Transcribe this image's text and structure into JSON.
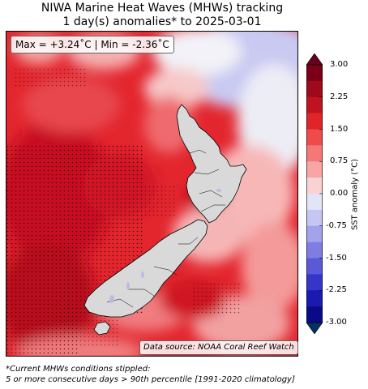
{
  "title": {
    "line1": "NIWA Marine Heat Waves (MHWs) tracking",
    "line2": "1 day(s) anomalies* to 2025-03-01"
  },
  "stats": {
    "text": "Max = +3.24˚C | Min = -2.36˚C",
    "max": 3.24,
    "min": -2.36
  },
  "source": "Data source: NOAA Coral Reef Watch",
  "colorbar": {
    "label": "SST anomaly (°C)",
    "range": [
      -3.0,
      3.0
    ],
    "ticks": [
      "3.00",
      "2.25",
      "1.50",
      "0.75",
      "0.00",
      "-0.75",
      "-1.50",
      "-2.25",
      "-3.00"
    ],
    "tick_values": [
      3.0,
      2.25,
      1.5,
      0.75,
      0.0,
      -0.75,
      -1.5,
      -2.25,
      -3.0
    ],
    "colors": [
      "#67001f",
      "#b2182b",
      "#d6604d",
      "#f4a582",
      "#fddbc7",
      "#f7f7f7",
      "#d1e5f0",
      "#92c5de",
      "#4393c3",
      "#2166ac",
      "#053061"
    ]
  },
  "footnote": {
    "line1": "*Current MHWs conditions stippled:",
    "line2": "5 or more consecutive days > 90th percentile [1991-2020 climatology]"
  },
  "colors": {
    "land": "#d9d9d9",
    "ocean_warm": "#e8242c",
    "ocean_hot": "#c80d1f",
    "ocean_mild": "#f8a0a0",
    "ocean_cool": "#c8c8f0"
  }
}
